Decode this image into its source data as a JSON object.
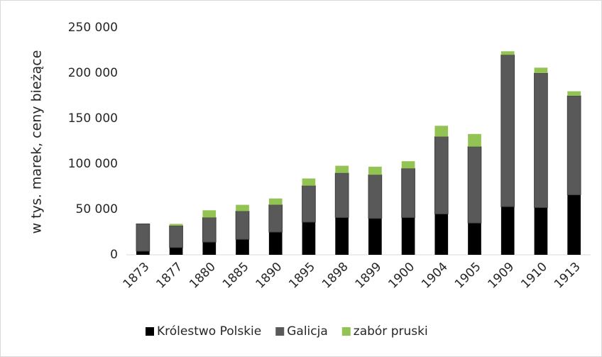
{
  "chart_data": {
    "type": "stacked_bar",
    "y_label": "w tys. marek, ceny bieżące",
    "categories": [
      "1873",
      "1877",
      "1880",
      "1885",
      "1890",
      "1895",
      "1898",
      "1899",
      "1900",
      "1904",
      "1905",
      "1909",
      "1910",
      "1913"
    ],
    "series": [
      {
        "name": "Królestwo Polskie",
        "color": "#000000",
        "values": [
          4000,
          8000,
          14000,
          17000,
          25000,
          36000,
          41000,
          40000,
          41000,
          45000,
          35000,
          53000,
          52000,
          66000
        ]
      },
      {
        "name": "Galicja",
        "color": "#595959",
        "values": [
          30000,
          24000,
          27000,
          31000,
          30000,
          40000,
          49000,
          48000,
          54000,
          85000,
          84000,
          167000,
          148000,
          109000
        ]
      },
      {
        "name": "zabór pruski",
        "color": "#92c353",
        "values": [
          0,
          2000,
          8000,
          7000,
          7000,
          8000,
          8000,
          9000,
          8000,
          12000,
          14000,
          4000,
          6000,
          5000
        ]
      }
    ],
    "ylim": [
      0,
      250000
    ],
    "yticks": [
      0,
      {
        "value": 50000,
        "label": "50 000"
      },
      {
        "value": 100000,
        "label": "100 000"
      },
      {
        "value": 150000,
        "label": "150 000"
      },
      {
        "value": 200000,
        "label": "200 000"
      },
      {
        "value": 250000,
        "label": "250 000"
      }
    ],
    "grid": false,
    "legend": "bottom"
  }
}
